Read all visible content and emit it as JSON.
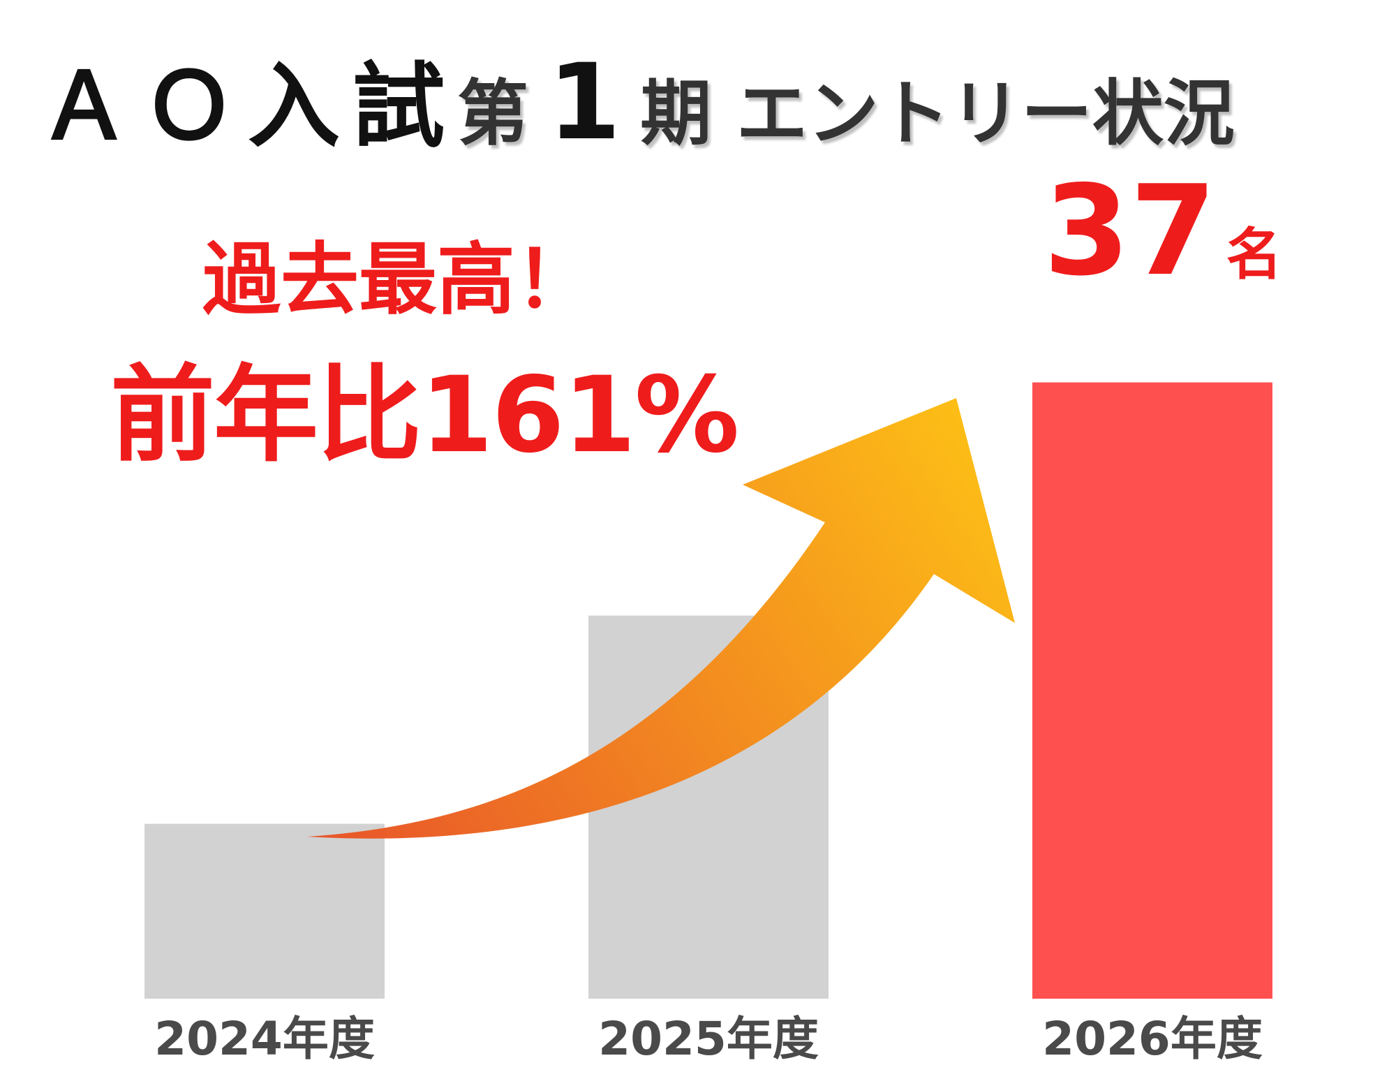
{
  "title": {
    "part1": "ＡＯ入試",
    "part2": "第",
    "number": "1",
    "part3": "期 エントリー状況"
  },
  "headline": {
    "line1": "過去最高！",
    "line2": "前年比161%"
  },
  "highlight": {
    "value": "37",
    "unit": "名"
  },
  "chart_data": {
    "type": "bar",
    "categories": [
      "2024年度",
      "2025年度",
      "2026年度"
    ],
    "values": [
      10.5,
      23,
      37
    ],
    "ylim": [
      0,
      40
    ],
    "grid": false,
    "bar_colors": [
      "#d2d2d2",
      "#d2d2d2",
      "#ff5050"
    ],
    "highlight_color": "#ef1c1c",
    "arrow_gradient": [
      "#e8542a",
      "#fdbf16"
    ]
  }
}
